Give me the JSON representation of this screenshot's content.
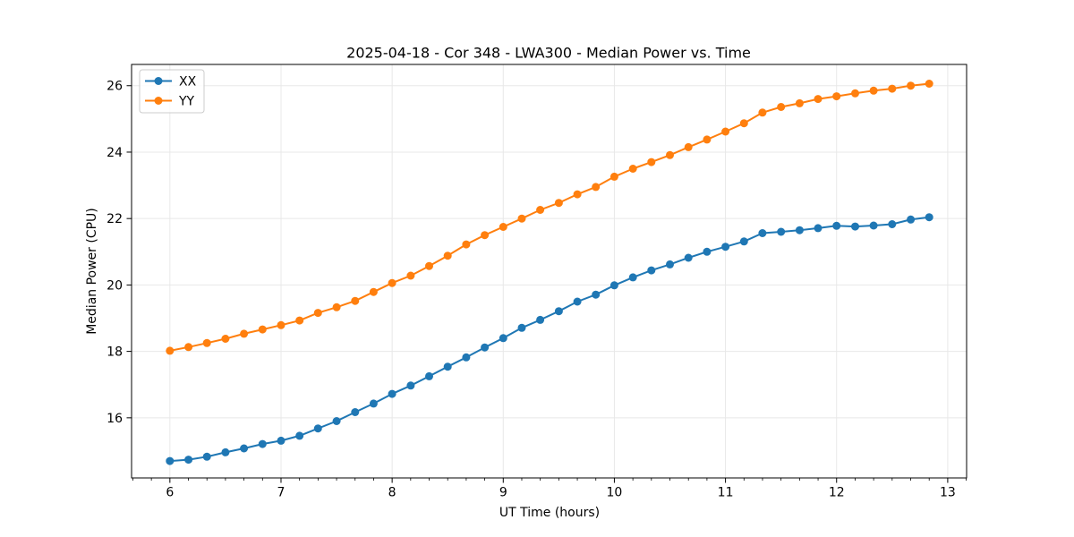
{
  "chart_data": {
    "type": "line",
    "title": "2025-04-18 - Cor 348 - LWA300 - Median Power vs. Time",
    "xlabel": "UT Time (hours)",
    "ylabel": "Median Power (CPU)",
    "xlim": [
      5.655,
      13.17
    ],
    "ylim": [
      14.19,
      26.64
    ],
    "xticks": [
      6,
      7,
      8,
      9,
      10,
      11,
      12,
      13
    ],
    "yticks": [
      16,
      18,
      20,
      22,
      24,
      26
    ],
    "minor_ticks_x_per_hour": 6,
    "grid": true,
    "grid_color": "#e8e8e8",
    "legend_position": "upper-left",
    "x": [
      6.0,
      6.167,
      6.333,
      6.5,
      6.667,
      6.833,
      7.0,
      7.167,
      7.333,
      7.5,
      7.667,
      7.833,
      8.0,
      8.167,
      8.333,
      8.5,
      8.667,
      8.833,
      9.0,
      9.167,
      9.333,
      9.5,
      9.667,
      9.833,
      10.0,
      10.167,
      10.333,
      10.5,
      10.667,
      10.833,
      11.0,
      11.167,
      11.333,
      11.5,
      11.667,
      11.833,
      12.0,
      12.167,
      12.333,
      12.5,
      12.667,
      12.833
    ],
    "series": [
      {
        "name": "XX",
        "color": "#1f77b4",
        "values": [
          14.7,
          14.74,
          14.83,
          14.96,
          15.08,
          15.21,
          15.31,
          15.46,
          15.68,
          15.9,
          16.17,
          16.43,
          16.72,
          16.97,
          17.25,
          17.54,
          17.82,
          18.12,
          18.4,
          18.71,
          18.95,
          19.21,
          19.5,
          19.71,
          19.99,
          20.23,
          20.44,
          20.62,
          20.82,
          21.0,
          21.15,
          21.31,
          21.56,
          21.6,
          21.65,
          21.71,
          21.78,
          21.76,
          21.79,
          21.83,
          21.97,
          22.04
        ]
      },
      {
        "name": "YY",
        "color": "#ff7f0e",
        "values": [
          18.02,
          18.13,
          18.25,
          18.38,
          18.53,
          18.66,
          18.79,
          18.93,
          19.16,
          19.33,
          19.52,
          19.79,
          20.06,
          20.28,
          20.57,
          20.88,
          21.22,
          21.5,
          21.75,
          22.0,
          22.26,
          22.47,
          22.73,
          22.95,
          23.26,
          23.5,
          23.7,
          23.91,
          24.15,
          24.38,
          24.62,
          24.87,
          25.19,
          25.36,
          25.47,
          25.6,
          25.68,
          25.77,
          25.85,
          25.91,
          26.0,
          26.06
        ]
      }
    ]
  }
}
